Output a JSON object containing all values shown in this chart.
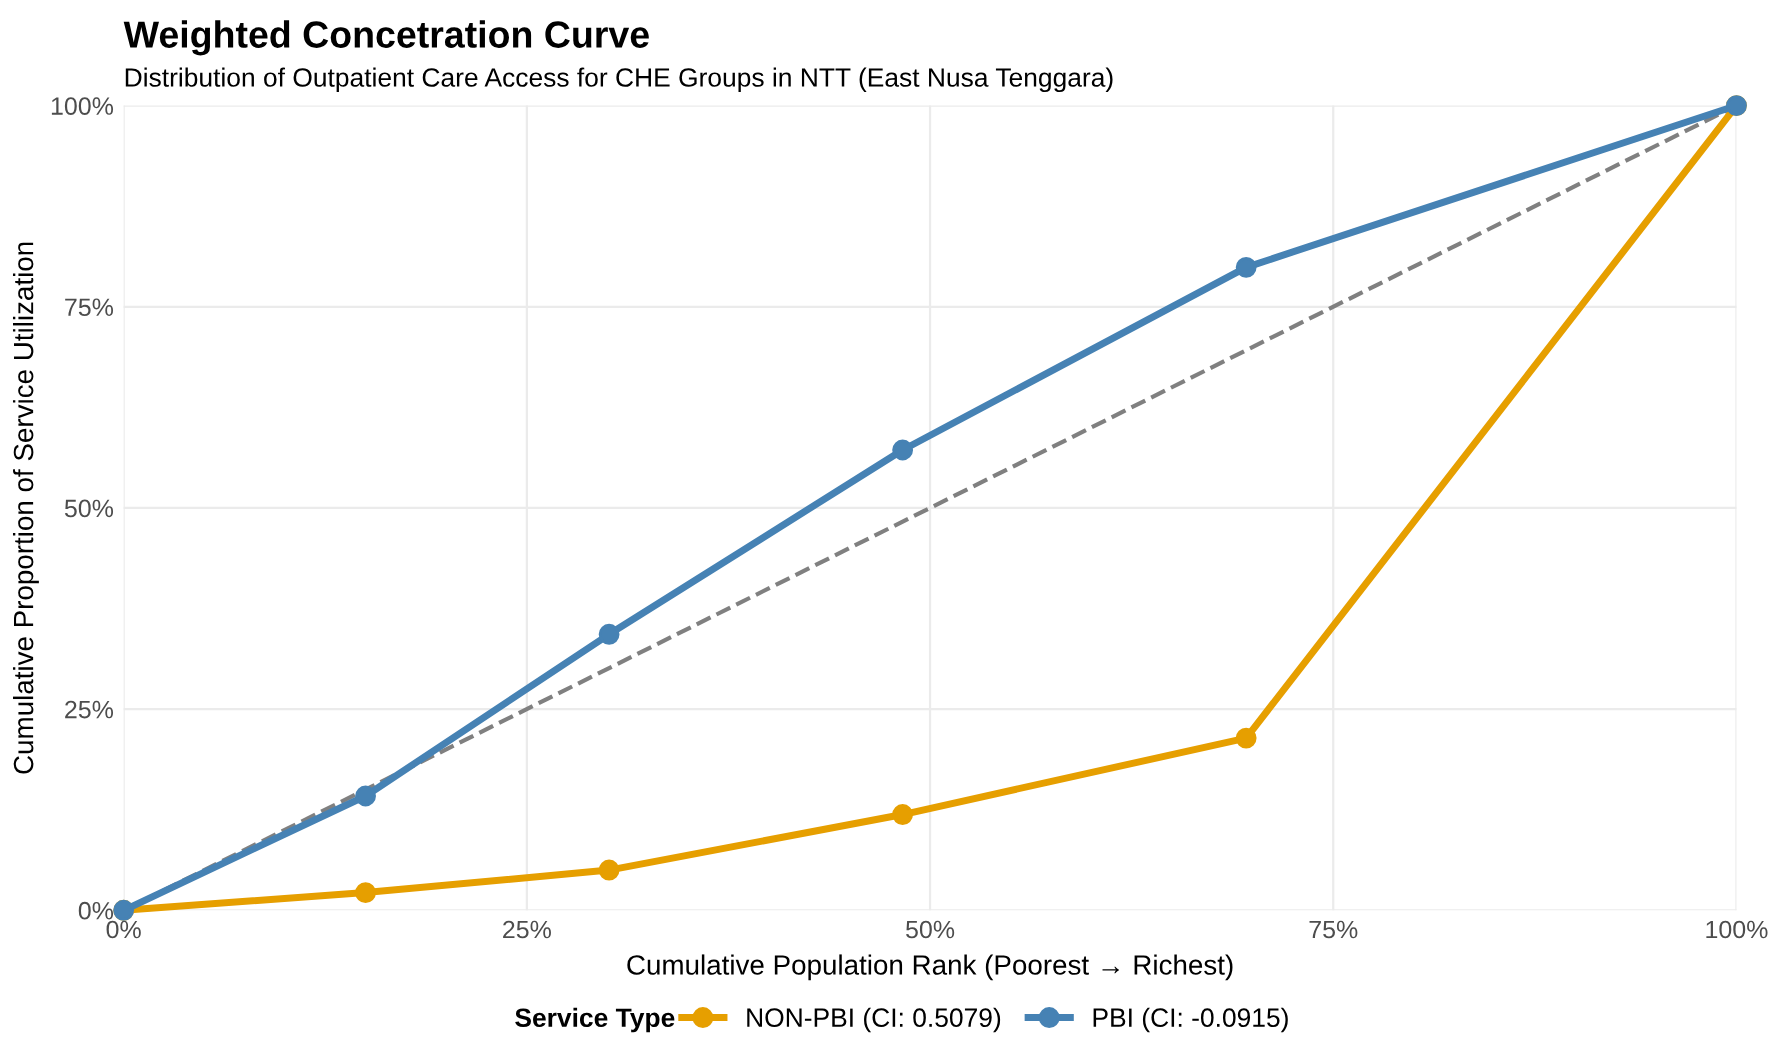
{
  "chart_data": {
    "type": "line",
    "title": "Weighted Concetration Curve",
    "subtitle": "Distribution of Outpatient Care Access for CHE Groups in NTT (East Nusa Tenggara)",
    "xlabel": "Cumulative Population Rank (Poorest → Richest)",
    "ylabel": "Cumulative Proportion of Service Utilization",
    "legend_title": "Service Type",
    "legend": "bottom",
    "grid": true,
    "marker": "circle",
    "line_style": "solid",
    "xlim": [
      0,
      100
    ],
    "ylim": [
      0,
      100
    ],
    "xticks": [
      {
        "value": 0,
        "label": "0%"
      },
      {
        "value": 25,
        "label": "25%"
      },
      {
        "value": 50,
        "label": "50%"
      },
      {
        "value": 75,
        "label": "75%"
      },
      {
        "value": 100,
        "label": "100%"
      }
    ],
    "yticks": [
      {
        "value": 0,
        "label": "0%"
      },
      {
        "value": 25,
        "label": "25%"
      },
      {
        "value": 50,
        "label": "50%"
      },
      {
        "value": 75,
        "label": "75%"
      },
      {
        "value": 100,
        "label": "100%"
      }
    ],
    "series": [
      {
        "color": "#808080",
        "x": [
          0,
          100
        ],
        "values": [
          0,
          100
        ],
        "line_style": "dashed",
        "marker": "none"
      },
      {
        "name": "NON-PBI (CI: 0.5079)",
        "color": "#E69F00",
        "x": [
          0,
          15,
          30.1,
          48.3,
          69.6,
          100
        ],
        "values": [
          0,
          2.2,
          5,
          11.9,
          21.4,
          100
        ]
      },
      {
        "name": "PBI (CI: -0.0915)",
        "color": "#4682B4",
        "x": [
          0,
          15,
          30.1,
          48.3,
          69.6,
          100
        ],
        "values": [
          0,
          14.2,
          34.3,
          57.2,
          79.9,
          100
        ]
      }
    ]
  }
}
